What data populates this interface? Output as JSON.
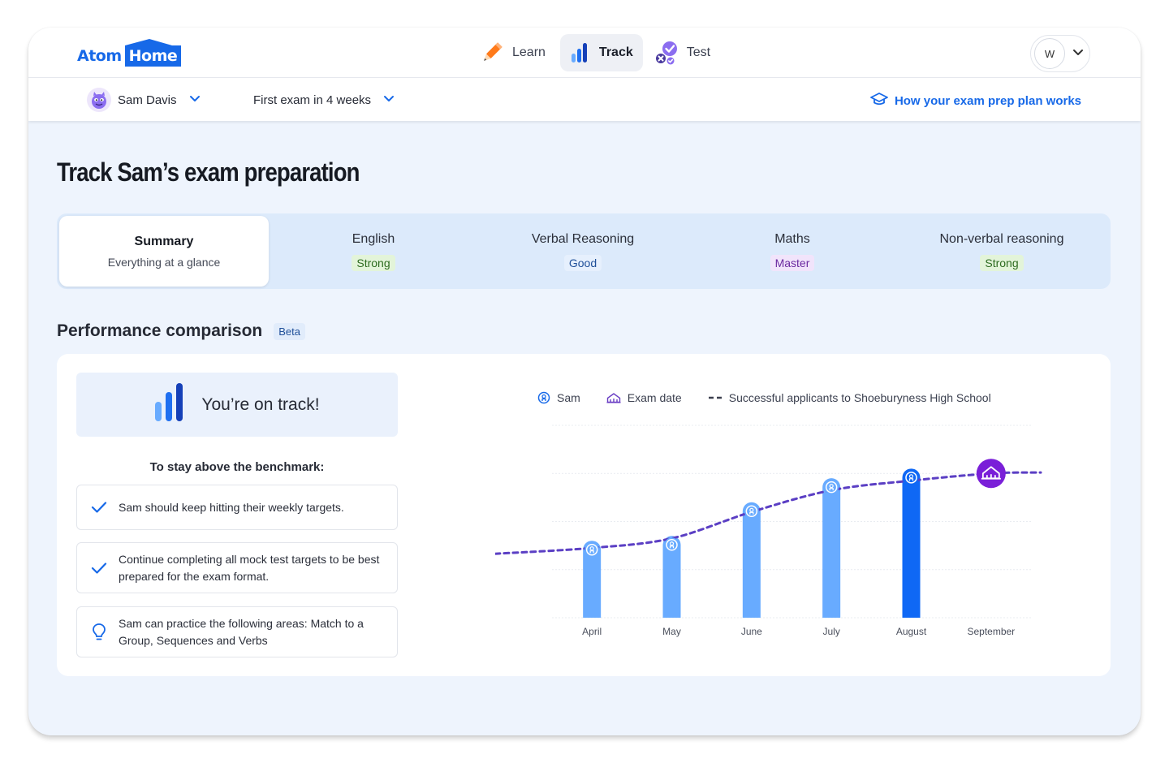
{
  "brand": {
    "part1": "Atom",
    "part2": "Home"
  },
  "nav": [
    {
      "label": "Learn",
      "icon": "pencil-icon",
      "active": false
    },
    {
      "label": "Track",
      "icon": "bar-chart-icon",
      "active": true
    },
    {
      "label": "Test",
      "icon": "test-check-icon",
      "active": false
    }
  ],
  "user": {
    "initial": "W"
  },
  "subbar": {
    "child_name": "Sam Davis",
    "exam_label": "First exam in 4 weeks",
    "plan_link": "How your exam prep plan works"
  },
  "page": {
    "title": "Track Sam’s exam preparation"
  },
  "tabs": [
    {
      "title": "Summary",
      "sub": "Everything at a glance",
      "active": true
    },
    {
      "title": "English",
      "badge": "Strong",
      "level": "strong"
    },
    {
      "title": "Verbal Reasoning",
      "badge": "Good",
      "level": "good"
    },
    {
      "title": "Maths",
      "badge": "Master",
      "level": "master"
    },
    {
      "title": "Non-verbal reasoning",
      "badge": "Strong",
      "level": "strong"
    }
  ],
  "section": {
    "title": "Performance comparison",
    "badge": "Beta"
  },
  "summary": {
    "status": "You’re on track!",
    "benchmark_title": "To stay above the benchmark:",
    "tips": [
      {
        "icon": "check-icon",
        "text": "Sam should keep hitting their weekly targets."
      },
      {
        "icon": "check-icon",
        "text": "Continue completing all mock test targets to be best prepared for the exam format."
      },
      {
        "icon": "lightbulb-icon",
        "text": "Sam can practice the following areas: Match to a Group, Sequences and Verbs"
      }
    ]
  },
  "legend": {
    "sam": "Sam",
    "exam": "Exam date",
    "benchmark": "Successful applicants to Shoeburyness High School"
  },
  "colors": {
    "bar": "#68abff",
    "bar_current": "#0f68f5",
    "benchmark_line": "#5b3fc4",
    "exam_marker": "#7a1fd8",
    "accent": "#1769e8"
  },
  "chart_data": {
    "type": "bar",
    "categories": [
      "April",
      "May",
      "June",
      "July",
      "August",
      "September"
    ],
    "series": [
      {
        "name": "Sam",
        "values": [
          1.6,
          1.7,
          2.4,
          2.9,
          3.1,
          null
        ]
      },
      {
        "name": "Successful applicants to Shoeburyness High School",
        "type": "line",
        "style": "dashed",
        "values": [
          1.45,
          1.65,
          2.2,
          2.65,
          2.85,
          3.0
        ]
      }
    ],
    "current_index": 4,
    "exam_index": 5,
    "ylim": [
      0,
      4
    ],
    "grid": true,
    "yaxis_labels": false,
    "legend_position": "top"
  }
}
